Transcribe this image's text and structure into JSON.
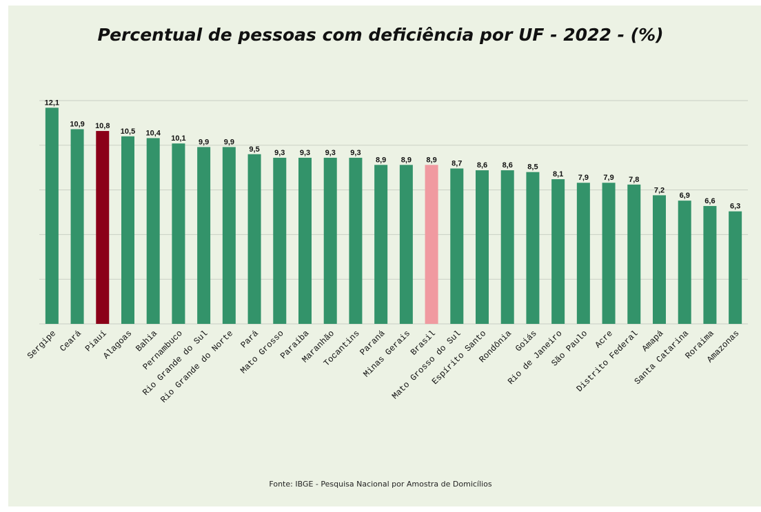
{
  "chart_data": {
    "type": "bar",
    "title": "Percentual de pessoas com deficiência por UF - 2022 - (%)",
    "categories": [
      "Sergipe",
      "Ceará",
      "Piauí",
      "Alagoas",
      "Bahia",
      "Pernambuco",
      "Rio Grande do Sul",
      "Rio Grande do Norte",
      "Pará",
      "Mato Grosso",
      "Paraíba",
      "Maranhão",
      "Tocantins",
      "Paraná",
      "Minas Gerais",
      "Brasil",
      "Mato Grosso do Sul",
      "Espírito Santo",
      "Rondônia",
      "Goiás",
      "Rio de Janeiro",
      "São Paulo",
      "Acre",
      "Distrito Federal",
      "Amapá",
      "Santa Catarina",
      "Roraima",
      "Amazonas"
    ],
    "values": [
      12.1,
      10.9,
      10.8,
      10.5,
      10.4,
      10.1,
      9.9,
      9.9,
      9.5,
      9.3,
      9.3,
      9.3,
      9.3,
      8.9,
      8.9,
      8.9,
      8.7,
      8.6,
      8.6,
      8.5,
      8.1,
      7.9,
      7.9,
      7.8,
      7.2,
      6.9,
      6.6,
      6.3
    ],
    "value_labels": [
      "12,1",
      "10,9",
      "10,8",
      "10,5",
      "10,4",
      "10,1",
      "9,9",
      "9,9",
      "9,5",
      "9,3",
      "9,3",
      "9,3",
      "9,3",
      "8,9",
      "8,9",
      "8,9",
      "8,7",
      "8,6",
      "8,6",
      "8,5",
      "8,1",
      "7,9",
      "7,9",
      "7,8",
      "7,2",
      "6,9",
      "6,6",
      "6,3"
    ],
    "highlight": {
      "Piauí": "#8b0018",
      "Brasil": "#f09aa0"
    },
    "bar_color": "#33936a",
    "ylim": [
      0,
      12.5
    ],
    "grid": true,
    "axis_lines_y": [
      0,
      2.5,
      5,
      7.5,
      10,
      12.5
    ]
  },
  "source_text": "Fonte: IBGE -  Pesquisa Nacional por Amostra de Domicílios"
}
